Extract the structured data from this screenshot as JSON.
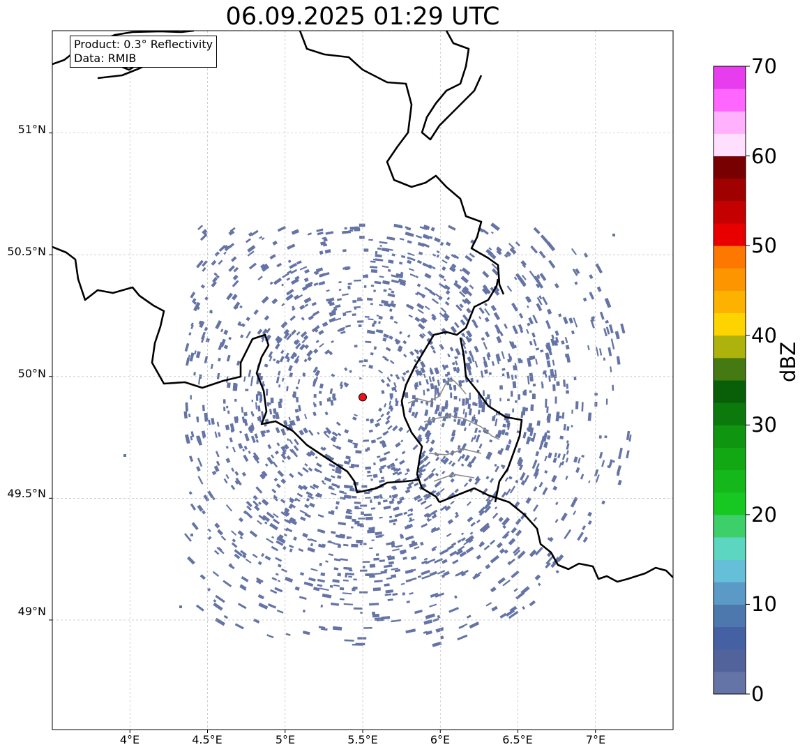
{
  "title": "06.09.2025 01:29 UTC",
  "info": {
    "product": "Product: 0.3° Reflectivity",
    "data": "Data: RMIB"
  },
  "lat_labels": [
    "51°N",
    "50.5°N",
    "50°N",
    "49.5°N",
    "49°N"
  ],
  "lon_labels": [
    "4°E",
    "4.5°E",
    "5°E",
    "5.5°E",
    "6°E",
    "6.5°E",
    "7°E"
  ],
  "map": {
    "lon_range": [
      3.5,
      7.5
    ],
    "lat_range": [
      48.55,
      51.42
    ],
    "radar_site": {
      "lon": 5.5,
      "lat": 49.915,
      "color": "#e8141c"
    },
    "echo_color": "#6574a6"
  },
  "colorbar": {
    "unit": "dBZ",
    "min": 0,
    "max": 70,
    "tick_labels": [
      "70",
      "60",
      "50",
      "40",
      "30",
      "20",
      "10",
      "0"
    ],
    "colors": [
      "#6574a6",
      "#52639c",
      "#4560a3",
      "#4c78ad",
      "#5b9ac6",
      "#66bfd8",
      "#5cd6c0",
      "#3dd06a",
      "#17c823",
      "#14b81b",
      "#12a814",
      "#0f9510",
      "#0c790d",
      "#085f08",
      "#457912",
      "#adb20c",
      "#fed400",
      "#fdb200",
      "#fc9500",
      "#fc7800",
      "#e80000",
      "#c50000",
      "#a00000",
      "#780000",
      "#ffdffe",
      "#ffb1fe",
      "#ff66ff",
      "#e73dee"
    ]
  }
}
